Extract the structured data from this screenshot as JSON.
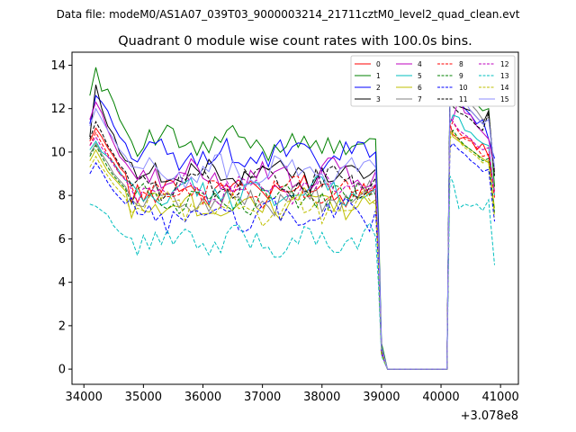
{
  "chart_data": {
    "type": "line",
    "suptitle": "Data file: modeM0/AS1A07_039T03_9000003214_21711cztM0_level2_quad_clean.evt",
    "title": "Quadrant 0 module wise count rates with 100.0s bins.",
    "xlabel": "",
    "ylabel": "",
    "x_offset_label": "+3.078e8",
    "xlim": [
      33800,
      41300
    ],
    "ylim": [
      -0.7,
      14.6
    ],
    "x_ticks": [
      34000,
      35000,
      36000,
      37000,
      38000,
      39000,
      40000,
      41000
    ],
    "x_tick_labels": [
      "34000",
      "35000",
      "36000",
      "37000",
      "38000",
      "39000",
      "40000",
      "41000"
    ],
    "y_ticks": [
      0,
      2,
      4,
      6,
      8,
      10,
      12,
      14
    ],
    "y_tick_labels": [
      "0",
      "2",
      "4",
      "6",
      "8",
      "10",
      "12",
      "14"
    ],
    "x": [
      34100,
      34200,
      34300,
      34400,
      34500,
      34600,
      34700,
      34800,
      34900,
      35000,
      35100,
      35200,
      35300,
      35400,
      35500,
      35600,
      35700,
      35800,
      35900,
      36000,
      36100,
      36200,
      36300,
      36400,
      36500,
      36600,
      36700,
      36800,
      36900,
      37000,
      37100,
      37200,
      37300,
      37400,
      37500,
      37600,
      37700,
      37800,
      37900,
      38000,
      38100,
      38200,
      38300,
      38400,
      38500,
      38600,
      38700,
      38800,
      38900,
      38950,
      39000,
      39100,
      39200,
      39300,
      39400,
      39500,
      39600,
      39700,
      39800,
      39900,
      40000,
      40100,
      40150,
      40200,
      40300,
      40400,
      40500,
      40600,
      40700,
      40800,
      40900,
      41000
    ],
    "legend_location": "upper right",
    "series": [
      {
        "name": "0",
        "color": "#ff0000",
        "dash": "solid",
        "level": 8.3,
        "start": [
          10.5,
          11.1,
          10.7,
          10.2,
          9.8,
          9.3,
          9.0
        ],
        "gap_last": 0.8,
        "peak": [
          11.3,
          10.8,
          10.6,
          10.7,
          10.6,
          10.1,
          10.4,
          9.8,
          8.2
        ]
      },
      {
        "name": "1",
        "color": "#008000",
        "dash": "solid",
        "level": 10.4,
        "start": [
          12.6,
          13.9,
          12.8,
          12.9,
          12.3,
          11.5,
          11.0
        ],
        "gap_last": 1.2,
        "peak": [
          12.9,
          13.8,
          13.8,
          13.1,
          12.6,
          12.2,
          11.9,
          12.0,
          8.4
        ]
      },
      {
        "name": "2",
        "color": "#0000ff",
        "dash": "solid",
        "level": 9.8,
        "start": [
          11.3,
          12.6,
          12.3,
          11.9,
          11.2,
          10.7,
          10.4
        ],
        "gap_last": 1.0,
        "peak": [
          12.5,
          13.0,
          12.3,
          12.0,
          11.7,
          11.3,
          11.5,
          10.6,
          9.7
        ]
      },
      {
        "name": "3",
        "color": "#000000",
        "dash": "solid",
        "level": 9.0,
        "start": [
          10.7,
          13.1,
          12.0,
          11.2,
          10.8,
          10.0,
          9.6
        ],
        "gap_last": 0.9,
        "peak": [
          12.3,
          12.9,
          12.1,
          12.0,
          11.9,
          11.6,
          11.3,
          11.9,
          8.9
        ]
      },
      {
        "name": "4",
        "color": "#bf00bf",
        "dash": "solid",
        "level": 8.9,
        "start": [
          11.5,
          12.3,
          11.8,
          11.0,
          10.4,
          9.8,
          9.5
        ],
        "gap_last": 0.9,
        "peak": [
          11.4,
          11.5,
          12.5,
          11.8,
          11.7,
          11.2,
          10.9,
          10.6,
          9.2
        ]
      },
      {
        "name": "5",
        "color": "#00bfbf",
        "dash": "solid",
        "level": 8.1,
        "start": [
          10.1,
          10.5,
          10.0,
          9.8,
          9.5,
          9.1,
          8.7
        ],
        "gap_last": 0.8,
        "peak": [
          11.3,
          11.7,
          11.6,
          11.0,
          10.9,
          10.6,
          10.4,
          10.3,
          8.0
        ]
      },
      {
        "name": "6",
        "color": "#bfbf00",
        "dash": "solid",
        "level": 7.6,
        "start": [
          9.6,
          10.1,
          9.6,
          9.1,
          8.8,
          8.5,
          8.2
        ],
        "gap_last": 0.7,
        "peak": [
          11.0,
          10.7,
          10.5,
          10.3,
          10.1,
          9.9,
          9.7,
          9.5,
          7.4
        ]
      },
      {
        "name": "7",
        "color": "#808080",
        "dash": "solid",
        "level": 7.8,
        "start": [
          9.9,
          10.4,
          9.9,
          9.5,
          9.0,
          8.7,
          8.4
        ],
        "gap_last": 0.8,
        "peak": [
          12.3,
          13.3,
          12.9,
          12.6,
          12.2,
          11.9,
          11.5,
          11.6,
          9.0
        ]
      },
      {
        "name": "8",
        "color": "#ff0000",
        "dash": "dashed",
        "level": 8.2,
        "start": [
          10.3,
          10.9,
          10.4,
          9.9,
          9.5,
          9.0,
          8.8
        ],
        "gap_last": 0.8,
        "peak": [
          11.1,
          11.4,
          10.9,
          10.6,
          10.5,
          10.2,
          9.8,
          9.9,
          7.9
        ]
      },
      {
        "name": "9",
        "color": "#008000",
        "dash": "dashed",
        "level": 7.9,
        "start": [
          9.8,
          10.3,
          9.8,
          9.3,
          8.9,
          8.6,
          8.3
        ],
        "gap_last": 0.8,
        "peak": [
          10.8,
          11.0,
          10.6,
          10.3,
          10.1,
          9.9,
          9.6,
          9.7,
          7.2
        ]
      },
      {
        "name": "10",
        "color": "#0000ff",
        "dash": "dashed",
        "level": 7.1,
        "start": [
          9.0,
          9.5,
          9.1,
          8.6,
          8.2,
          7.9,
          7.6
        ],
        "gap_last": 0.7,
        "peak": [
          10.2,
          10.4,
          10.1,
          9.9,
          9.6,
          9.4,
          9.1,
          9.2,
          6.8
        ]
      },
      {
        "name": "11",
        "color": "#000000",
        "dash": "dashed",
        "level": 8.6,
        "start": [
          10.6,
          11.4,
          10.9,
          10.3,
          9.9,
          9.4,
          9.1
        ],
        "gap_last": 0.9,
        "peak": [
          12.6,
          12.1,
          11.8,
          11.7,
          11.5,
          11.2,
          11.0,
          11.8,
          9.0
        ]
      },
      {
        "name": "12",
        "color": "#bf00bf",
        "dash": "dashed",
        "level": 8.3,
        "start": [
          10.3,
          10.7,
          10.2,
          9.8,
          9.4,
          9.0,
          8.7
        ],
        "gap_last": 0.8,
        "peak": [
          11.6,
          11.4,
          11.0,
          10.8,
          10.6,
          10.3,
          10.1,
          10.2,
          8.1
        ]
      },
      {
        "name": "13",
        "color": "#00bfbf",
        "dash": "dashed",
        "level": 5.9,
        "start": [
          7.6,
          7.5,
          7.3,
          7.1,
          6.6,
          6.3,
          6.1
        ],
        "gap_last": 0.6,
        "peak": [
          8.9,
          8.6,
          7.4,
          7.6,
          7.5,
          7.6,
          7.3,
          7.8,
          4.8
        ]
      },
      {
        "name": "14",
        "color": "#bfbf00",
        "dash": "dashed",
        "level": 7.4,
        "start": [
          9.3,
          9.8,
          9.3,
          8.9,
          8.5,
          8.2,
          7.9
        ],
        "gap_last": 0.7,
        "peak": [
          10.6,
          10.9,
          10.5,
          10.2,
          10.0,
          9.8,
          9.5,
          9.6,
          7.0
        ]
      },
      {
        "name": "15",
        "color": "#8c8cff",
        "dash": "solid",
        "level": 9.1,
        "start": [
          11.2,
          12.0,
          11.5,
          11.0,
          10.6,
          10.1,
          9.8
        ],
        "gap_last": 1.0,
        "peak": [
          12.1,
          13.5,
          12.6,
          12.3,
          11.9,
          11.6,
          11.3,
          11.5,
          9.3
        ]
      }
    ]
  }
}
